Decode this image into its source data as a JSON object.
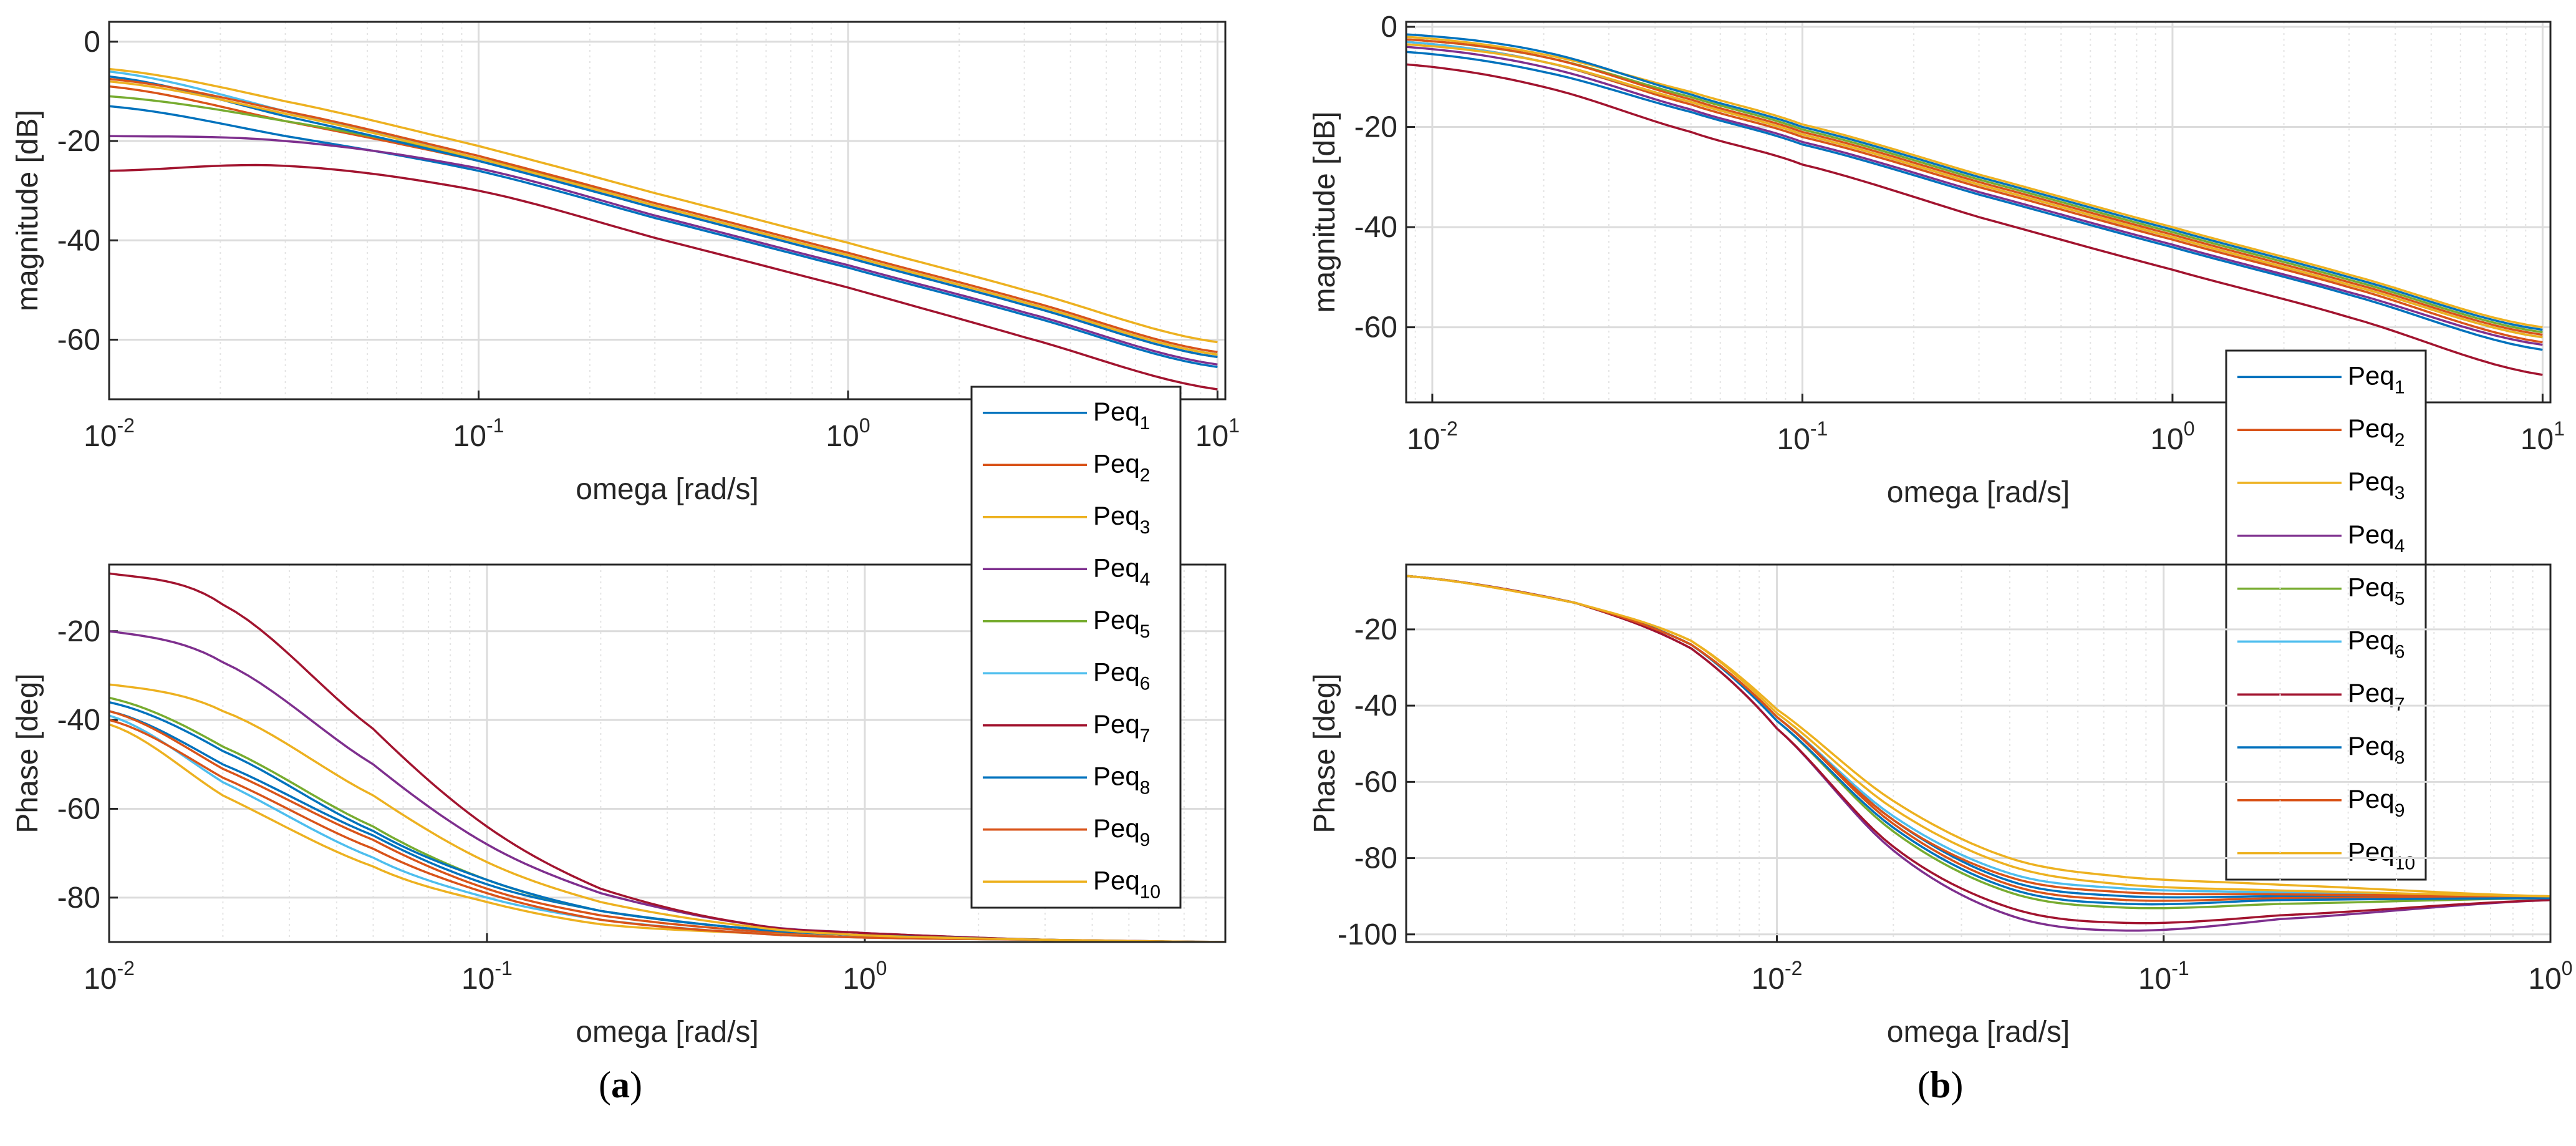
{
  "colors": {
    "grid": "#dcdcdc",
    "axes": "#262626",
    "series": [
      "#0072BD",
      "#D95319",
      "#EDB120",
      "#7E2F8E",
      "#77AC30",
      "#4DBEEE",
      "#A2142F",
      "#0072BD",
      "#D95319",
      "#EDB120"
    ]
  },
  "panel_labels": [
    {
      "open": "(",
      "letter": "a",
      "close": ")"
    },
    {
      "open": "(",
      "letter": "b",
      "close": ")"
    }
  ],
  "legend_base": "Peq",
  "chart_data": [
    {
      "id": "a-magnitude",
      "type": "line",
      "xscale": "log",
      "xlabel": "omega [rad/s]",
      "ylabel": "magnitude [dB]",
      "xlim": [
        0.01,
        10.5
      ],
      "ylim": [
        -72,
        4
      ],
      "xticks": [
        {
          "base": "10",
          "exp": "-2",
          "value": 0.01
        },
        {
          "base": "10",
          "exp": "-1",
          "value": 0.1
        },
        {
          "base": "10",
          "exp": "0",
          "value": 1
        },
        {
          "base": "10",
          "exp": "1",
          "value": 10
        }
      ],
      "yticks": [
        0,
        -20,
        -40,
        -60
      ],
      "legend": null,
      "series": [
        {
          "name": "Peq1",
          "x": [
            0.01,
            0.03,
            0.1,
            0.3,
            1,
            3,
            10
          ],
          "y": [
            -13,
            -19,
            -26,
            -35.5,
            -45.5,
            -55,
            -65.5
          ]
        },
        {
          "name": "Peq2",
          "x": [
            0.01,
            0.03,
            0.1,
            0.3,
            1,
            3,
            10
          ],
          "y": [
            -9,
            -16,
            -24,
            -33.5,
            -43.5,
            -53,
            -63.5
          ]
        },
        {
          "name": "Peq3",
          "x": [
            0.01,
            0.03,
            0.1,
            0.3,
            1,
            3,
            10
          ],
          "y": [
            -5.5,
            -12,
            -21,
            -30.5,
            -40.5,
            -50,
            -60.5
          ]
        },
        {
          "name": "Peq4",
          "x": [
            0.01,
            0.03,
            0.1,
            0.3,
            1,
            3,
            10
          ],
          "y": [
            -19,
            -20,
            -25.5,
            -35,
            -45,
            -54.5,
            -65
          ]
        },
        {
          "name": "Peq5",
          "x": [
            0.01,
            0.03,
            0.1,
            0.3,
            1,
            3,
            10
          ],
          "y": [
            -11,
            -16,
            -23.5,
            -33,
            -43,
            -52.5,
            -63
          ]
        },
        {
          "name": "Peq6",
          "x": [
            0.01,
            0.03,
            0.1,
            0.3,
            1,
            3,
            10
          ],
          "y": [
            -6,
            -14,
            -23.5,
            -33,
            -43,
            -52.5,
            -63
          ]
        },
        {
          "name": "Peq7",
          "x": [
            0.01,
            0.03,
            0.1,
            0.3,
            1,
            3,
            10
          ],
          "y": [
            -26,
            -25,
            -30,
            -39.5,
            -49.5,
            -59.5,
            -70
          ]
        },
        {
          "name": "Peq8",
          "x": [
            0.01,
            0.03,
            0.1,
            0.3,
            1,
            3,
            10
          ],
          "y": [
            -7,
            -15,
            -24,
            -33.5,
            -43.5,
            -53,
            -63.5
          ]
        },
        {
          "name": "Peq9",
          "x": [
            0.01,
            0.03,
            0.1,
            0.3,
            1,
            3,
            10
          ],
          "y": [
            -7.5,
            -14,
            -23,
            -32.5,
            -42.5,
            -52,
            -62.5
          ]
        },
        {
          "name": "Peq10",
          "x": [
            0.01,
            0.03,
            0.1,
            0.3,
            1,
            3,
            10
          ],
          "y": [
            -8,
            -14.5,
            -23.5,
            -33,
            -43,
            -52.5,
            -63
          ]
        }
      ]
    },
    {
      "id": "a-phase",
      "type": "line",
      "xscale": "log",
      "xlabel": "omega [rad/s]",
      "ylabel": "Phase [deg]",
      "xlim": [
        0.01,
        9
      ],
      "ylim": [
        -90,
        -5
      ],
      "xticks": [
        {
          "base": "10",
          "exp": "-2",
          "value": 0.01
        },
        {
          "base": "10",
          "exp": "-1",
          "value": 0.1
        },
        {
          "base": "10",
          "exp": "0",
          "value": 1
        }
      ],
      "yticks": [
        -20,
        -40,
        -60,
        -80
      ],
      "legend": "top-right",
      "series": [
        {
          "name": "Peq1",
          "x": [
            0.01,
            0.02,
            0.05,
            0.1,
            0.2,
            0.5,
            1,
            3,
            9
          ],
          "y": [
            -38,
            -50,
            -66,
            -77,
            -83,
            -87,
            -88.5,
            -89.5,
            -90
          ]
        },
        {
          "name": "Peq2",
          "x": [
            0.01,
            0.02,
            0.05,
            0.1,
            0.2,
            0.5,
            1,
            3,
            9
          ],
          "y": [
            -38,
            -51,
            -67,
            -78,
            -84,
            -87.5,
            -89,
            -89.5,
            -90
          ]
        },
        {
          "name": "Peq3",
          "x": [
            0.01,
            0.02,
            0.05,
            0.1,
            0.2,
            0.5,
            1,
            3,
            9
          ],
          "y": [
            -41,
            -57,
            -73,
            -81,
            -86,
            -88,
            -89,
            -89.5,
            -90
          ]
        },
        {
          "name": "Peq4",
          "x": [
            0.01,
            0.02,
            0.05,
            0.1,
            0.2,
            0.5,
            1,
            3,
            9
          ],
          "y": [
            -20,
            -27,
            -50,
            -68,
            -79,
            -86,
            -88,
            -89.5,
            -90
          ]
        },
        {
          "name": "Peq5",
          "x": [
            0.01,
            0.02,
            0.05,
            0.1,
            0.2,
            0.5,
            1,
            3,
            9
          ],
          "y": [
            -35,
            -46,
            -64,
            -76,
            -83,
            -87,
            -88.5,
            -89.5,
            -90
          ]
        },
        {
          "name": "Peq6",
          "x": [
            0.01,
            0.02,
            0.05,
            0.1,
            0.2,
            0.5,
            1,
            3,
            9
          ],
          "y": [
            -39,
            -54,
            -71,
            -80,
            -85,
            -88,
            -89,
            -89.5,
            -90
          ]
        },
        {
          "name": "Peq7",
          "x": [
            0.01,
            0.02,
            0.05,
            0.1,
            0.2,
            0.5,
            1,
            3,
            9
          ],
          "y": [
            -7,
            -14,
            -42,
            -64,
            -78,
            -86,
            -88,
            -89.5,
            -90
          ]
        },
        {
          "name": "Peq8",
          "x": [
            0.01,
            0.02,
            0.05,
            0.1,
            0.2,
            0.5,
            1,
            3,
            9
          ],
          "y": [
            -36,
            -47,
            -65,
            -76,
            -83,
            -87,
            -88.5,
            -89.5,
            -90
          ]
        },
        {
          "name": "Peq9",
          "x": [
            0.01,
            0.02,
            0.05,
            0.1,
            0.2,
            0.5,
            1,
            3,
            9
          ],
          "y": [
            -40,
            -53,
            -69,
            -79,
            -85,
            -88,
            -89,
            -89.5,
            -90
          ]
        },
        {
          "name": "Peq10",
          "x": [
            0.01,
            0.02,
            0.05,
            0.1,
            0.2,
            0.5,
            1,
            3,
            9
          ],
          "y": [
            -32,
            -38,
            -57,
            -72,
            -81,
            -86.5,
            -88.5,
            -89.5,
            -90
          ]
        }
      ]
    },
    {
      "id": "b-magnitude",
      "type": "line",
      "xscale": "log",
      "xlabel": "omega [rad/s]",
      "ylabel": "magnitude [dB]",
      "xlim": [
        0.0085,
        10.5
      ],
      "ylim": [
        -75,
        1
      ],
      "xticks": [
        {
          "base": "10",
          "exp": "-2",
          "value": 0.01
        },
        {
          "base": "10",
          "exp": "-1",
          "value": 0.1
        },
        {
          "base": "10",
          "exp": "0",
          "value": 1
        },
        {
          "base": "10",
          "exp": "1",
          "value": 10
        }
      ],
      "yticks": [
        0,
        -20,
        -40,
        -60
      ],
      "legend": "top-right",
      "series": [
        {
          "name": "Peq1",
          "x": [
            0.0085,
            0.02,
            0.05,
            0.1,
            0.3,
            1,
            3,
            10
          ],
          "y": [
            -5,
            -9,
            -17,
            -23.5,
            -33.5,
            -44,
            -53.5,
            -64.5
          ]
        },
        {
          "name": "Peq2",
          "x": [
            0.0085,
            0.02,
            0.05,
            0.1,
            0.3,
            1,
            3,
            10
          ],
          "y": [
            -3,
            -7,
            -15.5,
            -22,
            -32,
            -42.5,
            -52,
            -63
          ]
        },
        {
          "name": "Peq3",
          "x": [
            0.0085,
            0.02,
            0.05,
            0.1,
            0.3,
            1,
            3,
            10
          ],
          "y": [
            -2,
            -5.5,
            -13,
            -19.5,
            -29.5,
            -40,
            -49.5,
            -60
          ]
        },
        {
          "name": "Peq4",
          "x": [
            0.0085,
            0.02,
            0.05,
            0.1,
            0.3,
            1,
            3,
            10
          ],
          "y": [
            -4,
            -8,
            -16.5,
            -23,
            -33,
            -43.5,
            -53,
            -63.5
          ]
        },
        {
          "name": "Peq5",
          "x": [
            0.0085,
            0.02,
            0.05,
            0.1,
            0.3,
            1,
            3,
            10
          ],
          "y": [
            -2.5,
            -6,
            -14,
            -20.5,
            -30.5,
            -41,
            -50.5,
            -61
          ]
        },
        {
          "name": "Peq6",
          "x": [
            0.0085,
            0.02,
            0.05,
            0.1,
            0.3,
            1,
            3,
            10
          ],
          "y": [
            -3,
            -7,
            -15,
            -21.5,
            -31.5,
            -42,
            -51.5,
            -62
          ]
        },
        {
          "name": "Peq7",
          "x": [
            0.0085,
            0.02,
            0.05,
            0.1,
            0.3,
            1,
            3,
            10
          ],
          "y": [
            -7.5,
            -12,
            -21,
            -27.5,
            -38,
            -48.5,
            -58,
            -69.5
          ]
        },
        {
          "name": "Peq8",
          "x": [
            0.0085,
            0.02,
            0.05,
            0.1,
            0.3,
            1,
            3,
            10
          ],
          "y": [
            -1.5,
            -5,
            -13.5,
            -20,
            -30,
            -40.5,
            -50,
            -60.5
          ]
        },
        {
          "name": "Peq9",
          "x": [
            0.0085,
            0.02,
            0.05,
            0.1,
            0.3,
            1,
            3,
            10
          ],
          "y": [
            -2.5,
            -6,
            -14.5,
            -21,
            -31,
            -41.5,
            -51,
            -61.5
          ]
        },
        {
          "name": "Peq10",
          "x": [
            0.0085,
            0.02,
            0.05,
            0.1,
            0.3,
            1,
            3,
            10
          ],
          "y": [
            -3.5,
            -7,
            -15,
            -21.5,
            -31.5,
            -42,
            -51.5,
            -62
          ]
        }
      ]
    },
    {
      "id": "b-phase",
      "type": "line",
      "xscale": "log",
      "xlabel": "omega [rad/s]",
      "ylabel": "Phase [deg]",
      "xlim": [
        0.0011,
        1.0
      ],
      "ylim": [
        -102,
        -3
      ],
      "xticks": [
        {
          "base": "10",
          "exp": "-2",
          "value": 0.01
        },
        {
          "base": "10",
          "exp": "-1",
          "value": 0.1
        },
        {
          "base": "10",
          "exp": "0",
          "value": 1
        }
      ],
      "yticks": [
        -20,
        -40,
        -60,
        -80,
        -100
      ],
      "legend": null,
      "series": [
        {
          "name": "Peq1",
          "x": [
            0.0011,
            0.003,
            0.006,
            0.01,
            0.02,
            0.04,
            0.08,
            0.2,
            1
          ],
          "y": [
            -6,
            -13,
            -24,
            -43,
            -70,
            -86,
            -90,
            -90,
            -90
          ]
        },
        {
          "name": "Peq2",
          "x": [
            0.0011,
            0.003,
            0.006,
            0.01,
            0.02,
            0.04,
            0.08,
            0.2,
            1
          ],
          "y": [
            -6,
            -13,
            -24,
            -43,
            -71,
            -87,
            -91,
            -90.5,
            -90
          ]
        },
        {
          "name": "Peq3",
          "x": [
            0.0011,
            0.003,
            0.006,
            0.01,
            0.02,
            0.04,
            0.08,
            0.2,
            1
          ],
          "y": [
            -6,
            -13,
            -23,
            -41,
            -65,
            -80,
            -85,
            -87,
            -90
          ]
        },
        {
          "name": "Peq4",
          "x": [
            0.0011,
            0.003,
            0.006,
            0.01,
            0.02,
            0.04,
            0.08,
            0.2,
            1
          ],
          "y": [
            -6,
            -13,
            -25,
            -46,
            -78,
            -95,
            -99,
            -96,
            -91
          ]
        },
        {
          "name": "Peq5",
          "x": [
            0.0011,
            0.003,
            0.006,
            0.01,
            0.02,
            0.04,
            0.08,
            0.2,
            1
          ],
          "y": [
            -6,
            -13,
            -24,
            -44,
            -73,
            -89,
            -93,
            -92,
            -90.5
          ]
        },
        {
          "name": "Peq6",
          "x": [
            0.0011,
            0.003,
            0.006,
            0.01,
            0.02,
            0.04,
            0.08,
            0.2,
            1
          ],
          "y": [
            -6,
            -13,
            -24,
            -43,
            -69,
            -84,
            -88,
            -89,
            -90
          ]
        },
        {
          "name": "Peq7",
          "x": [
            0.0011,
            0.003,
            0.006,
            0.01,
            0.02,
            0.04,
            0.08,
            0.2,
            1
          ],
          "y": [
            -6,
            -13,
            -25,
            -46,
            -77,
            -93,
            -97,
            -95,
            -91
          ]
        },
        {
          "name": "Peq8",
          "x": [
            0.0011,
            0.003,
            0.006,
            0.01,
            0.02,
            0.04,
            0.08,
            0.2,
            1
          ],
          "y": [
            -6,
            -13,
            -24,
            -44,
            -72,
            -88,
            -92,
            -91,
            -90.5
          ]
        },
        {
          "name": "Peq9",
          "x": [
            0.0011,
            0.003,
            0.006,
            0.01,
            0.02,
            0.04,
            0.08,
            0.2,
            1
          ],
          "y": [
            -6,
            -13,
            -24,
            -43,
            -70,
            -85,
            -89,
            -89.5,
            -90
          ]
        },
        {
          "name": "Peq10",
          "x": [
            0.0011,
            0.003,
            0.006,
            0.01,
            0.02,
            0.04,
            0.08,
            0.2,
            1
          ],
          "y": [
            -6,
            -13,
            -23,
            -42,
            -67,
            -82,
            -87,
            -88.5,
            -90
          ]
        }
      ]
    }
  ]
}
